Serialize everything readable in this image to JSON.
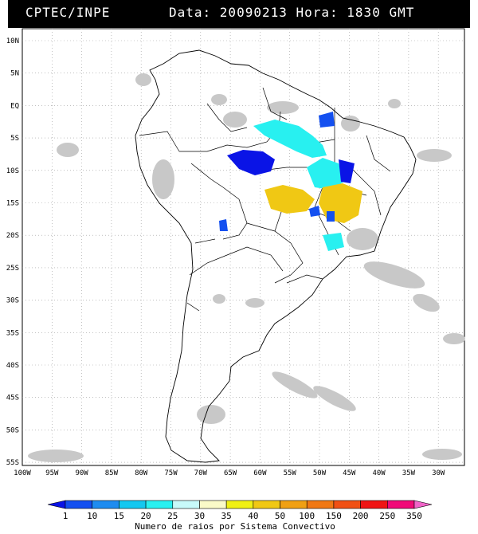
{
  "header": {
    "source": "CPTEC/INPE",
    "datetime": "Data: 20090213 Hora: 1830 GMT"
  },
  "map": {
    "lat_labels": [
      "10N",
      "5N",
      "EQ",
      "5S",
      "10S",
      "15S",
      "20S",
      "25S",
      "30S",
      "35S",
      "40S",
      "45S",
      "50S",
      "55S"
    ],
    "lon_labels": [
      "100W",
      "95W",
      "90W",
      "85W",
      "80W",
      "75W",
      "70W",
      "65W",
      "60W",
      "55W",
      "50W",
      "45W",
      "40W",
      "35W",
      "30W"
    ]
  },
  "colorbar": {
    "ticks": [
      "1",
      "10",
      "15",
      "20",
      "25",
      "30",
      "35",
      "40",
      "50",
      "100",
      "150",
      "200",
      "250",
      "350"
    ],
    "colors": [
      "#0a14e6",
      "#1450f0",
      "#1e8cf0",
      "#14c8f0",
      "#28f0f0",
      "#c8fafa",
      "#fafac8",
      "#f0f014",
      "#f0c814",
      "#f0a014",
      "#f07814",
      "#f05014",
      "#f01414",
      "#f00a78",
      "#f064c8"
    ],
    "title": "Numero de raios por Sistema Convectivo"
  }
}
